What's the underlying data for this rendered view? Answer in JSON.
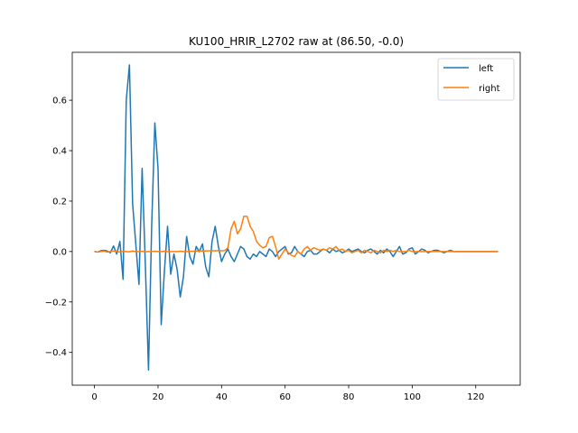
{
  "chart_data": {
    "type": "line",
    "title": "KU100_HRIR_L2702 raw at (86.50, -0.0)",
    "xlabel": "",
    "ylabel": "",
    "xlim": [
      -7,
      134
    ],
    "ylim": [
      -0.53,
      0.79
    ],
    "x_ticks": [
      0,
      20,
      40,
      60,
      80,
      100,
      120
    ],
    "y_ticks": [
      -0.4,
      -0.2,
      0.0,
      0.2,
      0.4,
      0.6
    ],
    "y_tick_labels": [
      "−0.4",
      "−0.2",
      "0.0",
      "0.2",
      "0.4",
      "0.6"
    ],
    "grid": false,
    "legend_position": "top-right",
    "series": [
      {
        "name": "left",
        "color": "#1f77b4",
        "values": [
          0.0,
          -0.002,
          0.003,
          0.005,
          0.002,
          -0.005,
          0.022,
          -0.01,
          0.04,
          -0.11,
          0.6,
          0.74,
          0.19,
          0.03,
          -0.13,
          0.33,
          -0.05,
          -0.47,
          0.1,
          0.51,
          0.33,
          -0.29,
          -0.08,
          0.1,
          -0.09,
          -0.01,
          -0.07,
          -0.18,
          -0.1,
          0.06,
          -0.02,
          -0.05,
          0.02,
          0.0,
          0.03,
          -0.06,
          -0.1,
          0.04,
          0.1,
          0.02,
          -0.04,
          -0.01,
          0.01,
          -0.02,
          -0.04,
          -0.01,
          0.02,
          0.01,
          -0.02,
          -0.03,
          -0.01,
          -0.02,
          0.0,
          -0.01,
          -0.02,
          0.01,
          0.0,
          -0.02,
          0.0,
          0.01,
          0.02,
          -0.01,
          -0.005,
          0.02,
          0.0,
          -0.01,
          -0.02,
          0.0,
          0.005,
          -0.01,
          -0.01,
          0.0,
          0.01,
          0.005,
          -0.005,
          0.01,
          0.0,
          0.005,
          -0.005,
          0.0,
          0.01,
          0.0,
          0.005,
          0.01,
          0.0,
          -0.005,
          0.005,
          0.01,
          0.0,
          -0.01,
          0.005,
          -0.005,
          0.01,
          0.0,
          -0.02,
          0.0,
          0.02,
          -0.01,
          -0.005,
          0.01,
          0.015,
          -0.01,
          0.0,
          0.01,
          0.005,
          -0.005,
          0.0,
          0.005,
          0.005,
          0.0,
          -0.005,
          0.0,
          0.005,
          0.0,
          0.0,
          0.0,
          0.0,
          0.0,
          0.0,
          0.0,
          0.0,
          0.0,
          0.0,
          0.0,
          0.0,
          0.0,
          0.0,
          0.0
        ]
      },
      {
        "name": "right",
        "color": "#ff7f0e",
        "values": [
          0.0,
          -0.002,
          0.0,
          0.002,
          -0.002,
          0.0,
          0.002,
          0.0,
          -0.002,
          0.001,
          0.0,
          -0.001,
          0.002,
          0.0,
          0.0,
          0.001,
          -0.001,
          0.0,
          0.0,
          0.001,
          0.0,
          0.0,
          0.001,
          0.0,
          0.0,
          0.0,
          0.0,
          0.001,
          0.0,
          0.0,
          0.001,
          0.001,
          0.002,
          0.002,
          0.002,
          0.002,
          0.003,
          0.003,
          0.003,
          0.004,
          0.003,
          0.004,
          0.015,
          0.09,
          0.12,
          0.07,
          0.09,
          0.14,
          0.14,
          0.1,
          0.08,
          0.04,
          0.025,
          0.015,
          0.02,
          0.055,
          0.06,
          0.02,
          -0.03,
          -0.01,
          0.01,
          -0.005,
          -0.015,
          -0.02,
          0.0,
          -0.01,
          0.01,
          0.02,
          0.005,
          0.015,
          0.01,
          0.005,
          0.01,
          0.005,
          0.015,
          0.01,
          0.02,
          0.005,
          0.01,
          0.0,
          0.005,
          -0.005,
          0.0,
          0.005,
          -0.005,
          0.005,
          0.0,
          -0.005,
          0.005,
          0.0,
          -0.005,
          0.005,
          0.0,
          0.005,
          0.0,
          0.005,
          0.0,
          0.0,
          0.0,
          0.005,
          0.0,
          0.0,
          0.0,
          0.0,
          0.0,
          0.0,
          0.0,
          0.0,
          0.0,
          0.0,
          0.0,
          0.0,
          0.0,
          0.0,
          0.0,
          0.0,
          0.0,
          0.0,
          0.0,
          0.0,
          0.0,
          0.0,
          0.0,
          0.0,
          0.0,
          0.0,
          0.0,
          0.0
        ]
      }
    ]
  }
}
